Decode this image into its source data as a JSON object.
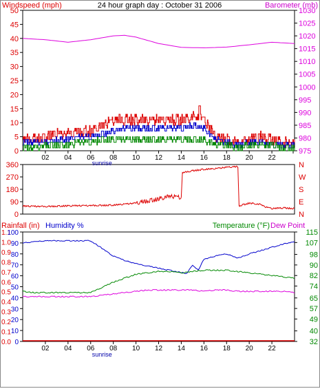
{
  "header": {
    "left_label": "Windspeed (mph)",
    "title": "24 hour graph day : October 31 2006",
    "right_label": "Barometer (mb)"
  },
  "humidity_header": {
    "rain_label": "Rainfall (in)",
    "humidity_label": "Humidity %",
    "temp_label": "Temperature (°F)",
    "dew_label": "Dew Point"
  },
  "colors": {
    "windspeed": "#dd0000",
    "avg": "#0000cc",
    "green": "#008800",
    "barometer": "#dd00dd",
    "rain": "#dd0000",
    "humidity": "#0000cc"
  },
  "chart_data": [
    {
      "type": "line",
      "panel": "wind",
      "xlabel": "",
      "x_ticks": [
        "02",
        "04",
        "06",
        "08",
        "10",
        "12",
        "14",
        "16",
        "18",
        "20",
        "22"
      ],
      "sunrise_label": "sunrise",
      "sunrise_hour": 7,
      "ylim_left": [
        0,
        50
      ],
      "y_ticks_left": [
        0,
        5,
        10,
        15,
        20,
        25,
        30,
        35,
        40,
        45,
        50
      ],
      "ylim_right": [
        975,
        1030
      ],
      "y_ticks_right": [
        975,
        980,
        985,
        990,
        995,
        1000,
        1005,
        1010,
        1015,
        1020,
        1025,
        1030
      ],
      "series": [
        {
          "role": "gust",
          "axis": "left",
          "x": [
            0,
            1,
            2,
            3,
            4,
            5,
            6,
            7,
            8,
            9,
            10,
            11,
            12,
            13,
            14,
            15,
            16,
            17,
            18,
            19,
            20,
            21,
            22,
            23,
            24
          ],
          "values": [
            4,
            4,
            5,
            6,
            6,
            7,
            7,
            9,
            11,
            11,
            11,
            11,
            11,
            11,
            11,
            12,
            11,
            5,
            4,
            3,
            4,
            5,
            4,
            3,
            3
          ]
        },
        {
          "role": "avg",
          "axis": "left",
          "x": [
            0,
            1,
            2,
            3,
            4,
            5,
            6,
            7,
            8,
            9,
            10,
            11,
            12,
            13,
            14,
            15,
            16,
            17,
            18,
            19,
            20,
            21,
            22,
            23,
            24
          ],
          "values": [
            3,
            3,
            3,
            4,
            4,
            5,
            5,
            6,
            7,
            8,
            8,
            8,
            8,
            8,
            8,
            9,
            8,
            4,
            3,
            2,
            3,
            3,
            2,
            2,
            2
          ]
        },
        {
          "role": "min",
          "axis": "left",
          "x": [
            0,
            1,
            2,
            3,
            4,
            5,
            6,
            7,
            8,
            9,
            10,
            11,
            12,
            13,
            14,
            15,
            16,
            17,
            18,
            19,
            20,
            21,
            22,
            23,
            24
          ],
          "values": [
            1,
            1,
            2,
            2,
            2,
            3,
            3,
            4,
            4,
            4,
            4,
            4,
            4,
            4,
            4,
            4,
            4,
            2,
            2,
            1,
            2,
            2,
            2,
            1,
            1
          ]
        },
        {
          "role": "barometer",
          "axis": "right",
          "x": [
            0,
            2,
            4,
            6,
            8,
            9,
            10,
            12,
            14,
            16,
            18,
            20,
            22,
            24
          ],
          "values": [
            1019,
            1018.5,
            1017.5,
            1018.5,
            1020,
            1020.2,
            1019.5,
            1017,
            1015.5,
            1015.3,
            1015.6,
            1016.5,
            1017.5,
            1017
          ]
        }
      ],
      "gust_peak": {
        "x": 15.6,
        "value": 16
      }
    },
    {
      "type": "line",
      "panel": "direction",
      "ylim": [
        0,
        360
      ],
      "y_ticks": [
        0,
        90,
        180,
        270,
        360
      ],
      "right_ticks": [
        "N",
        "W",
        "S",
        "E",
        "N"
      ],
      "series": [
        {
          "role": "direction",
          "x": [
            0,
            2,
            4,
            6,
            8,
            10,
            12,
            13,
            14,
            14.1,
            15,
            16,
            17,
            18,
            19,
            19.1,
            20,
            21,
            21.5,
            22,
            23,
            24
          ],
          "values": [
            58,
            55,
            60,
            62,
            65,
            80,
            110,
            130,
            120,
            300,
            315,
            325,
            330,
            340,
            345,
            60,
            80,
            70,
            50,
            40,
            45,
            40
          ]
        }
      ]
    },
    {
      "type": "line",
      "panel": "humidity",
      "x_ticks": [
        "02",
        "04",
        "06",
        "08",
        "10",
        "12",
        "14",
        "16",
        "18",
        "20",
        "22"
      ],
      "sunrise_label": "sunrise",
      "ylim_left": [
        0,
        100
      ],
      "y_ticks_humidity": [
        0,
        10,
        20,
        30,
        40,
        50,
        60,
        70,
        80,
        90,
        100
      ],
      "y_ticks_rain": [
        "0.0",
        "0.1",
        "0.2",
        "0.3",
        "0.4",
        "0.5",
        "0.6",
        "0.7",
        "0.8",
        "0.9",
        "1.0",
        "1.1"
      ],
      "ylim_right": [
        32,
        115
      ],
      "y_ticks_right": [
        32,
        40,
        49,
        57,
        65,
        74,
        82,
        90,
        98,
        107,
        115
      ],
      "series": [
        {
          "role": "humidity",
          "axis": "left",
          "x": [
            0,
            1,
            2,
            3,
            4,
            5,
            6,
            7,
            8,
            9,
            10,
            11,
            12,
            13,
            14,
            14.5,
            15,
            15.5,
            16,
            17,
            18,
            19,
            20,
            21,
            22,
            23,
            24
          ],
          "values": [
            90,
            91,
            92,
            92,
            92,
            92,
            92,
            85,
            78,
            74,
            71,
            69,
            67,
            65,
            63,
            62,
            70,
            65,
            75,
            78,
            80,
            76,
            80,
            83,
            86,
            89,
            91
          ]
        },
        {
          "role": "temperature",
          "axis": "right",
          "x": [
            0,
            1,
            2,
            3,
            4,
            5,
            6,
            7,
            8,
            9,
            10,
            11,
            12,
            13,
            14,
            15,
            16,
            17,
            18,
            19,
            20,
            21,
            22,
            23,
            24
          ],
          "values": [
            70,
            69,
            69,
            69,
            69,
            69,
            69,
            73,
            77,
            80,
            83,
            84,
            85,
            85,
            84,
            85,
            86,
            86,
            86,
            85,
            84,
            83,
            82,
            81,
            80
          ]
        },
        {
          "role": "dew_point",
          "axis": "right",
          "x": [
            0,
            1,
            2,
            3,
            4,
            5,
            6,
            7,
            8,
            9,
            10,
            11,
            12,
            13,
            14,
            15,
            16,
            17,
            18,
            19,
            20,
            21,
            22,
            23,
            24
          ],
          "values": [
            66,
            66,
            66,
            66,
            66,
            66,
            66,
            67,
            68,
            69,
            70,
            71,
            71,
            71,
            71,
            71,
            70,
            71,
            71,
            70,
            70,
            70,
            70,
            70,
            69
          ]
        },
        {
          "role": "rainfall",
          "axis": "rain",
          "x": [
            0,
            24
          ],
          "values": [
            0,
            0
          ]
        }
      ]
    }
  ]
}
